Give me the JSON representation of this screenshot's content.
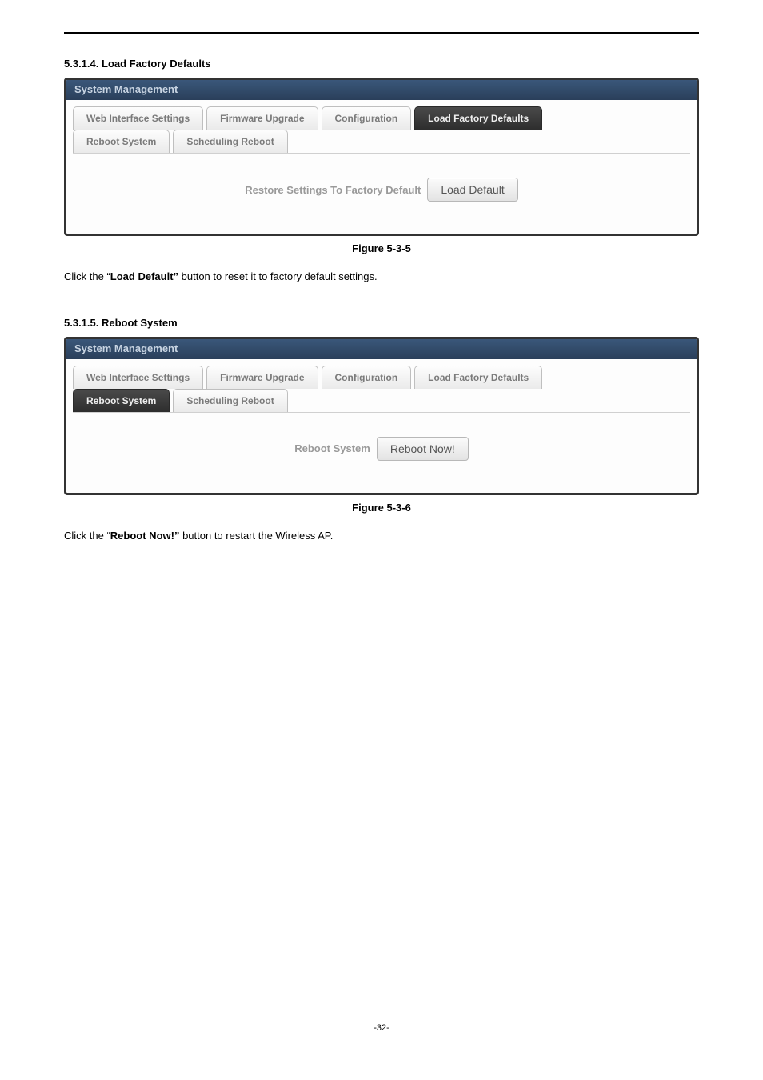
{
  "section1": {
    "number": "5.3.1.4.",
    "title": "Load Factory Defaults"
  },
  "panel1": {
    "title": "System Management",
    "tabs_row1": [
      {
        "label": "Web Interface Settings",
        "active": false
      },
      {
        "label": "Firmware Upgrade",
        "active": false
      },
      {
        "label": "Configuration",
        "active": false
      },
      {
        "label": "Load Factory Defaults",
        "active": true
      }
    ],
    "tabs_row2": [
      {
        "label": "Reboot System",
        "active": false
      },
      {
        "label": "Scheduling Reboot",
        "active": false
      }
    ],
    "body_label": "Restore Settings To Factory Default",
    "button_label": "Load Default"
  },
  "figure1": "Figure 5-3-5",
  "text1_pre": "Click the “",
  "text1_bold": "Load Default”",
  "text1_post": " button to reset it to factory default settings.",
  "section2": {
    "number": "5.3.1.5.",
    "title": "Reboot System"
  },
  "panel2": {
    "title": "System Management",
    "tabs_row1": [
      {
        "label": "Web Interface Settings",
        "active": false
      },
      {
        "label": "Firmware Upgrade",
        "active": false
      },
      {
        "label": "Configuration",
        "active": false
      },
      {
        "label": "Load Factory Defaults",
        "active": false
      }
    ],
    "tabs_row2": [
      {
        "label": "Reboot System",
        "active": true
      },
      {
        "label": "Scheduling Reboot",
        "active": false
      }
    ],
    "body_label": "Reboot System",
    "button_label": "Reboot Now!"
  },
  "figure2": "Figure 5-3-6",
  "text2_pre": "Click the “",
  "text2_bold": "Reboot Now!”",
  "text2_post": " button to restart the Wireless AP.",
  "page_number": "-32-",
  "colors": {
    "titlebar_top": "#3a577a",
    "titlebar_bottom": "#2a3f5a",
    "tab_inactive_text": "#7a7a7a",
    "tab_active_bg_top": "#4a4a4a",
    "tab_active_bg_bottom": "#2e2e2e",
    "body_label": "#9a9a9a",
    "panel_border": "#333333"
  }
}
